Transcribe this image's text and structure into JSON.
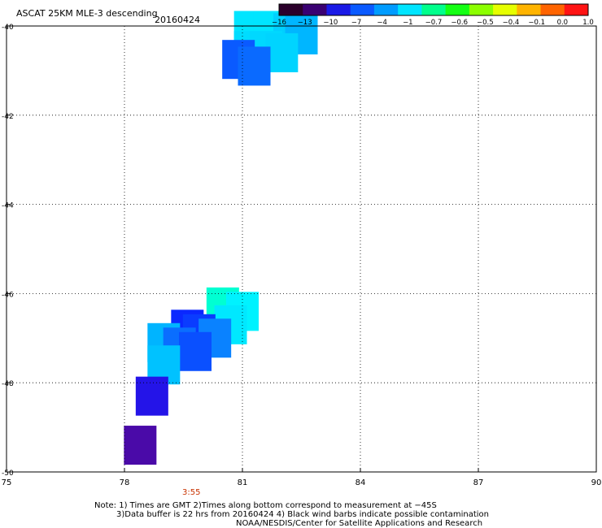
{
  "chart_data": {
    "type": "heatmap",
    "title": "ASCAT 25KM MLE-3 descending",
    "date_label": "20160424",
    "xlim": [
      75,
      90
    ],
    "ylim": [
      -50,
      -40
    ],
    "x_ticks": [
      "75",
      "78",
      "81",
      "84",
      "87",
      "90"
    ],
    "y_ticks": [
      "-40",
      "-42",
      "-44",
      "-46",
      "-48",
      "-50"
    ],
    "grid": true,
    "colorbar": {
      "placement": "top-right",
      "labels": [
        "-16",
        "-13",
        "-10",
        "-7",
        "-4",
        "-1",
        "-0.7",
        "-0.6",
        "-0.5",
        "-0.4",
        "-0.1",
        "0.0",
        "1.0"
      ],
      "colors": [
        "#2b002b",
        "#3a0072",
        "#1a1ae6",
        "#0a5aff",
        "#009cff",
        "#00e5ff",
        "#00ff8c",
        "#14ff14",
        "#8cff00",
        "#e6ff00",
        "#ffb400",
        "#ff6400",
        "#ff1414"
      ]
    },
    "cells": [
      {
        "lon": 81.2,
        "lat": -40.1,
        "value": -1.2,
        "color": "#00e5ff"
      },
      {
        "lon": 81.7,
        "lat": -40.1,
        "value": -1.3,
        "color": "#00e5ff"
      },
      {
        "lon": 82.2,
        "lat": -40.15,
        "value": -2.0,
        "color": "#00d0ff"
      },
      {
        "lon": 82.5,
        "lat": -40.2,
        "value": -3.0,
        "color": "#00b6ff"
      },
      {
        "lon": 81.2,
        "lat": -40.55,
        "value": -1.5,
        "color": "#00dcff"
      },
      {
        "lon": 81.6,
        "lat": -40.55,
        "value": -1.6,
        "color": "#00d8ff"
      },
      {
        "lon": 82.0,
        "lat": -40.6,
        "value": -1.8,
        "color": "#00d4ff"
      },
      {
        "lon": 80.9,
        "lat": -40.75,
        "value": -6.0,
        "color": "#0a5aff"
      },
      {
        "lon": 81.3,
        "lat": -40.9,
        "value": -5.5,
        "color": "#0a6aff"
      },
      {
        "lon": 80.5,
        "lat": -46.3,
        "value": -0.9,
        "color": "#00ffd2"
      },
      {
        "lon": 81.0,
        "lat": -46.4,
        "value": -1.2,
        "color": "#00f2ff"
      },
      {
        "lon": 80.7,
        "lat": -46.7,
        "value": -1.4,
        "color": "#00e8ff"
      },
      {
        "lon": 79.6,
        "lat": -46.8,
        "value": -8.0,
        "color": "#0a28ff"
      },
      {
        "lon": 79.9,
        "lat": -46.9,
        "value": -7.0,
        "color": "#0a3cff"
      },
      {
        "lon": 80.3,
        "lat": -47.0,
        "value": -5.0,
        "color": "#0a82ff"
      },
      {
        "lon": 79.0,
        "lat": -47.1,
        "value": -3.5,
        "color": "#00b4ff"
      },
      {
        "lon": 79.4,
        "lat": -47.2,
        "value": -5.5,
        "color": "#0a6eff"
      },
      {
        "lon": 79.8,
        "lat": -47.3,
        "value": -6.5,
        "color": "#0a50ff"
      },
      {
        "lon": 79.0,
        "lat": -47.6,
        "value": -2.5,
        "color": "#00c2ff"
      },
      {
        "lon": 78.7,
        "lat": -48.3,
        "value": -10.0,
        "color": "#2414e8"
      },
      {
        "lon": 78.4,
        "lat": -49.4,
        "value": -12.5,
        "color": "#4a0aa8"
      }
    ]
  },
  "annotations": {
    "time_label": "3:55",
    "note_line1": "Note: 1) Times are GMT 2)Times along bottom correspond to measurement at −45S",
    "note_line2": "3)Data buffer is 22 hrs from 20160424 4) Black wind barbs indicate possible contamination",
    "note_line3": "NOAA/NESDIS/Center for Satellite Applications and Research",
    "time_color": "#c83200"
  }
}
